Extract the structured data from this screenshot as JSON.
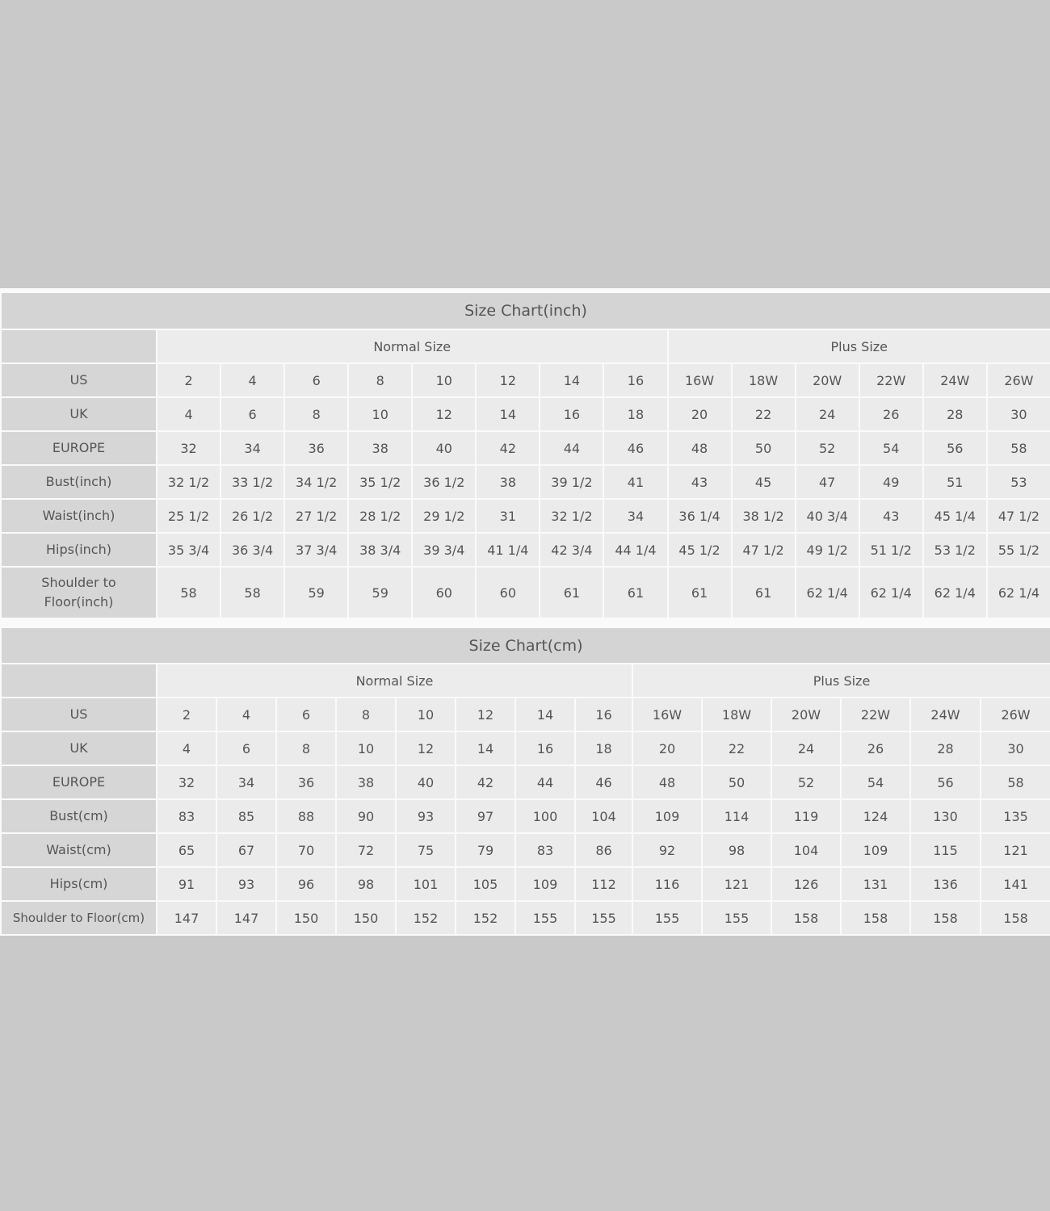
{
  "colors": {
    "background": "#c9c9c9",
    "title_bg": "#d4d4d4",
    "label_bg": "#d6d6d6",
    "cell_bg": "#ebebeb",
    "grid": "#fafafa"
  },
  "tables": [
    {
      "title": "Size Chart(inch)",
      "groups": [
        {
          "label": "Normal Size",
          "span": 8
        },
        {
          "label": "Plus Size",
          "span": 6
        }
      ],
      "rows": [
        {
          "label": "US",
          "values": [
            "2",
            "4",
            "6",
            "8",
            "10",
            "12",
            "14",
            "16",
            "16W",
            "18W",
            "20W",
            "22W",
            "24W",
            "26W"
          ]
        },
        {
          "label": "UK",
          "values": [
            "4",
            "6",
            "8",
            "10",
            "12",
            "14",
            "16",
            "18",
            "20",
            "22",
            "24",
            "26",
            "28",
            "30"
          ]
        },
        {
          "label": "EUROPE",
          "values": [
            "32",
            "34",
            "36",
            "38",
            "40",
            "42",
            "44",
            "46",
            "48",
            "50",
            "52",
            "54",
            "56",
            "58"
          ]
        },
        {
          "label": "Bust(inch)",
          "values": [
            "32 1/2",
            "33 1/2",
            "34 1/2",
            "35 1/2",
            "36 1/2",
            "38",
            "39 1/2",
            "41",
            "43",
            "45",
            "47",
            "49",
            "51",
            "53"
          ]
        },
        {
          "label": "Waist(inch)",
          "values": [
            "25 1/2",
            "26 1/2",
            "27 1/2",
            "28 1/2",
            "29 1/2",
            "31",
            "32 1/2",
            "34",
            "36 1/4",
            "38 1/2",
            "40 3/4",
            "43",
            "45 1/4",
            "47 1/2"
          ]
        },
        {
          "label": "Hips(inch)",
          "values": [
            "35 3/4",
            "36 3/4",
            "37 3/4",
            "38 3/4",
            "39 3/4",
            "41 1/4",
            "42 3/4",
            "44 1/4",
            "45 1/2",
            "47 1/2",
            "49 1/2",
            "51 1/2",
            "53 1/2",
            "55 1/2"
          ]
        },
        {
          "label": "Shoulder to Floor(inch)",
          "values": [
            "58",
            "58",
            "59",
            "59",
            "60",
            "60",
            "61",
            "61",
            "61",
            "61",
            "62 1/4",
            "62 1/4",
            "62 1/4",
            "62 1/4"
          ]
        }
      ]
    },
    {
      "title": "Size Chart(cm)",
      "groups": [
        {
          "label": "Normal Size",
          "span": 8
        },
        {
          "label": "Plus Size",
          "span": 6
        }
      ],
      "rows": [
        {
          "label": "US",
          "values": [
            "2",
            "4",
            "6",
            "8",
            "10",
            "12",
            "14",
            "16",
            "16W",
            "18W",
            "20W",
            "22W",
            "24W",
            "26W"
          ]
        },
        {
          "label": "UK",
          "values": [
            "4",
            "6",
            "8",
            "10",
            "12",
            "14",
            "16",
            "18",
            "20",
            "22",
            "24",
            "26",
            "28",
            "30"
          ]
        },
        {
          "label": "EUROPE",
          "values": [
            "32",
            "34",
            "36",
            "38",
            "40",
            "42",
            "44",
            "46",
            "48",
            "50",
            "52",
            "54",
            "56",
            "58"
          ]
        },
        {
          "label": "Bust(cm)",
          "values": [
            "83",
            "85",
            "88",
            "90",
            "93",
            "97",
            "100",
            "104",
            "109",
            "114",
            "119",
            "124",
            "130",
            "135"
          ]
        },
        {
          "label": "Waist(cm)",
          "values": [
            "65",
            "67",
            "70",
            "72",
            "75",
            "79",
            "83",
            "86",
            "92",
            "98",
            "104",
            "109",
            "115",
            "121"
          ]
        },
        {
          "label": "Hips(cm)",
          "values": [
            "91",
            "93",
            "96",
            "98",
            "101",
            "105",
            "109",
            "112",
            "116",
            "121",
            "126",
            "131",
            "136",
            "141"
          ]
        },
        {
          "label": "Shoulder to Floor(cm)",
          "values": [
            "147",
            "147",
            "150",
            "150",
            "152",
            "152",
            "155",
            "155",
            "155",
            "155",
            "158",
            "158",
            "158",
            "158"
          ]
        }
      ]
    }
  ]
}
